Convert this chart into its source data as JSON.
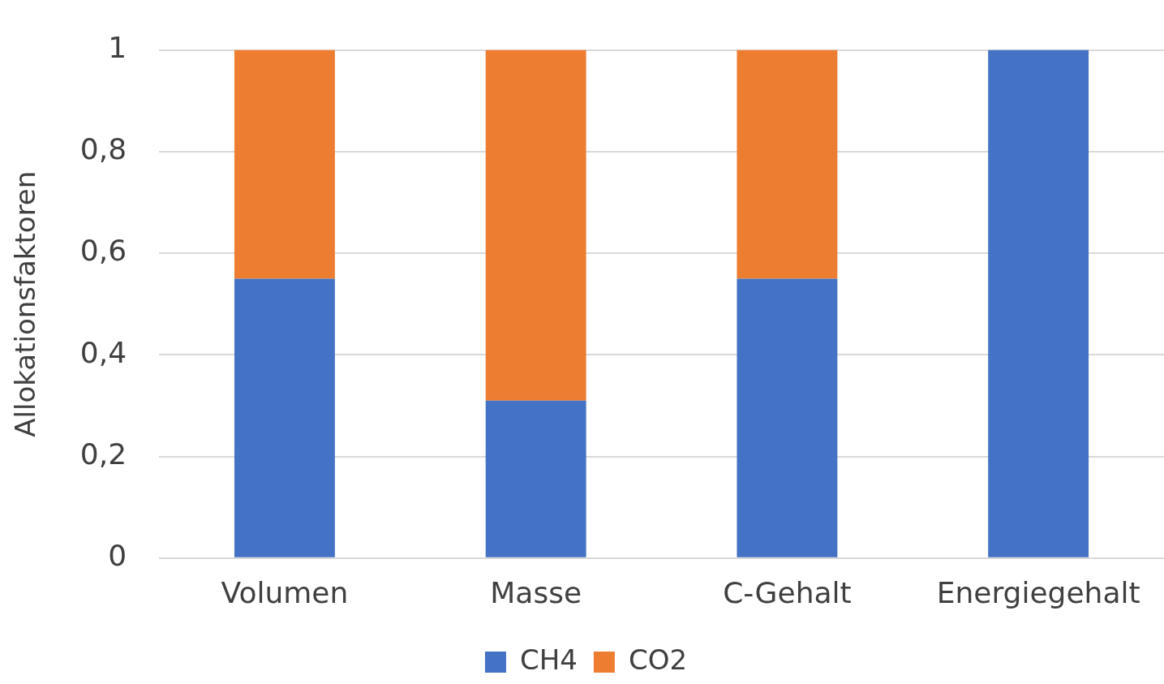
{
  "chart_data": {
    "type": "bar",
    "stacked": true,
    "ylabel": "Allokationsfaktoren",
    "categories": [
      "Volumen",
      "Masse",
      "C-Gehalt",
      "Energiegehalt"
    ],
    "series": [
      {
        "name": "CH4",
        "color": "#4472c4",
        "values": [
          0.55,
          0.31,
          0.55,
          1
        ]
      },
      {
        "name": "CO2",
        "color": "#ed7d31",
        "values": [
          0.45,
          0.69,
          0.45,
          0
        ]
      }
    ],
    "ylim": [
      0,
      1
    ],
    "yticks": [
      0,
      {
        "value": 0.2,
        "label": "0,2"
      },
      {
        "value": 0.4,
        "label": "0,4"
      },
      {
        "value": 0.6,
        "label": "0,6"
      },
      {
        "value": 0.8,
        "label": "0,8"
      },
      1
    ],
    "grid": "y",
    "legend": "bottom"
  }
}
